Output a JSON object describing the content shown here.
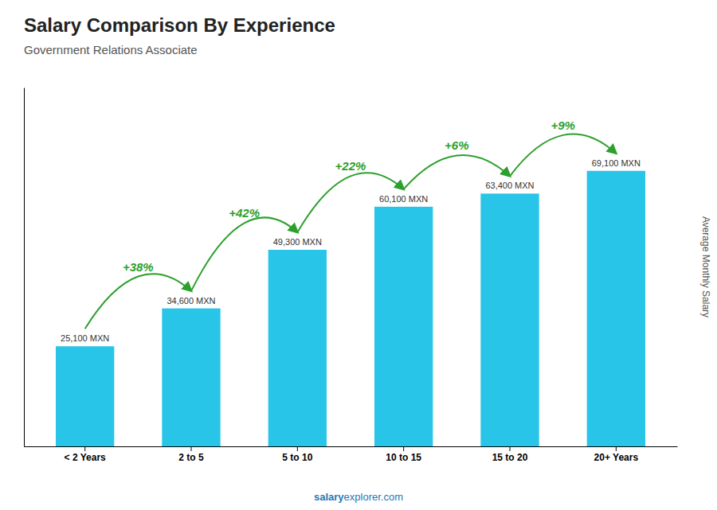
{
  "chart_data": {
    "type": "bar",
    "title": "Salary Comparison By Experience",
    "subtitle": "Government Relations Associate",
    "ylabel": "Average Monthly Salary",
    "categories": [
      "< 2 Years",
      "2 to 5",
      "5 to 10",
      "10 to 15",
      "15 to 20",
      "20+ Years"
    ],
    "values": [
      25100,
      34600,
      49300,
      60100,
      63400,
      69100
    ],
    "value_labels": [
      "25,100 MXN",
      "34,600 MXN",
      "49,300 MXN",
      "60,100 MXN",
      "63,400 MXN",
      "69,100 MXN"
    ],
    "data_labels": true,
    "color": "#29c5e8",
    "ylim": [
      0,
      90000
    ],
    "yticks": [],
    "tick_labels": "x",
    "grid": false,
    "annotations": [
      "+38%",
      "+42%",
      "+22%",
      "+6%",
      "+9%"
    ],
    "watermark": [
      "salary",
      "explorer.com"
    ]
  }
}
